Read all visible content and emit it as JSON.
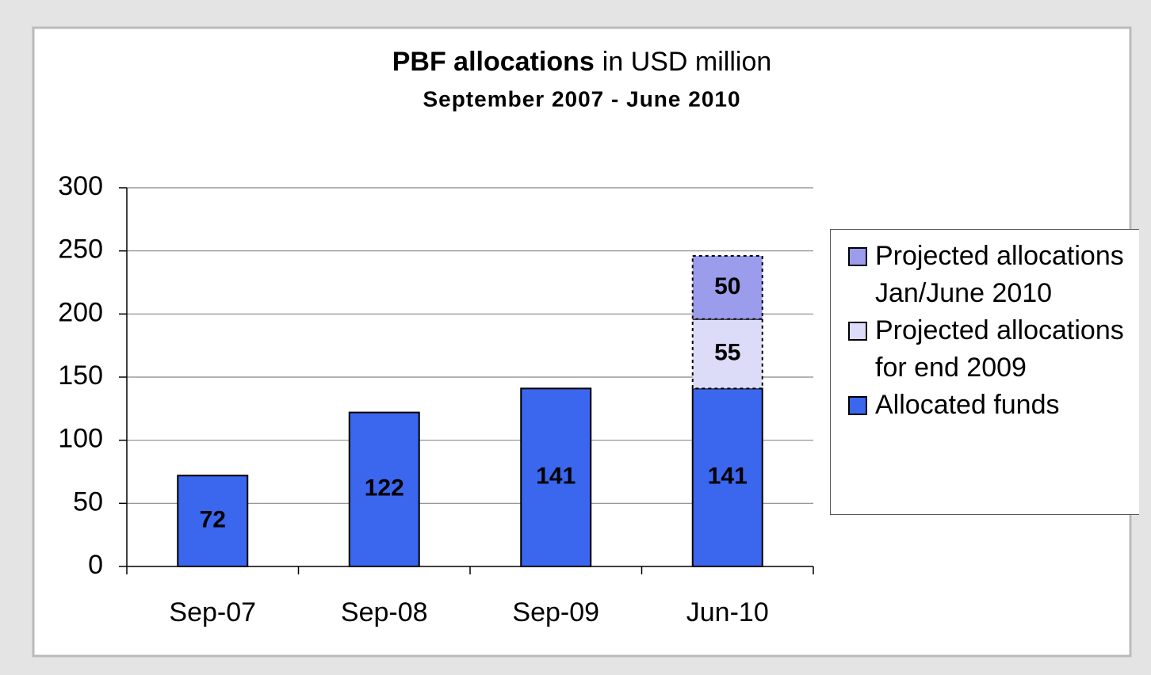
{
  "chart_data": {
    "type": "stacked_bar",
    "title": {
      "bold": "PBF allocations",
      "normal": "in USD million"
    },
    "subtitle": "September 2007 - June 2010",
    "categories": [
      "Sep-07",
      "Sep-08",
      "Sep-09",
      "Jun-10"
    ],
    "series": [
      {
        "name": "Allocated funds",
        "color": "#3b66ee",
        "values": [
          72,
          122,
          141,
          141
        ]
      },
      {
        "name": "Projected allocations for end 2009",
        "color": "#dcdcf8",
        "values": [
          null,
          null,
          null,
          55
        ]
      },
      {
        "name": "Projected allocations Jan/June 2010",
        "color": "#9c9cec",
        "values": [
          null,
          null,
          null,
          50
        ]
      }
    ],
    "ylim": [
      0,
      300
    ],
    "yticks": [
      0,
      50,
      100,
      150,
      200,
      250,
      300
    ],
    "grid": true,
    "legend": "right"
  }
}
